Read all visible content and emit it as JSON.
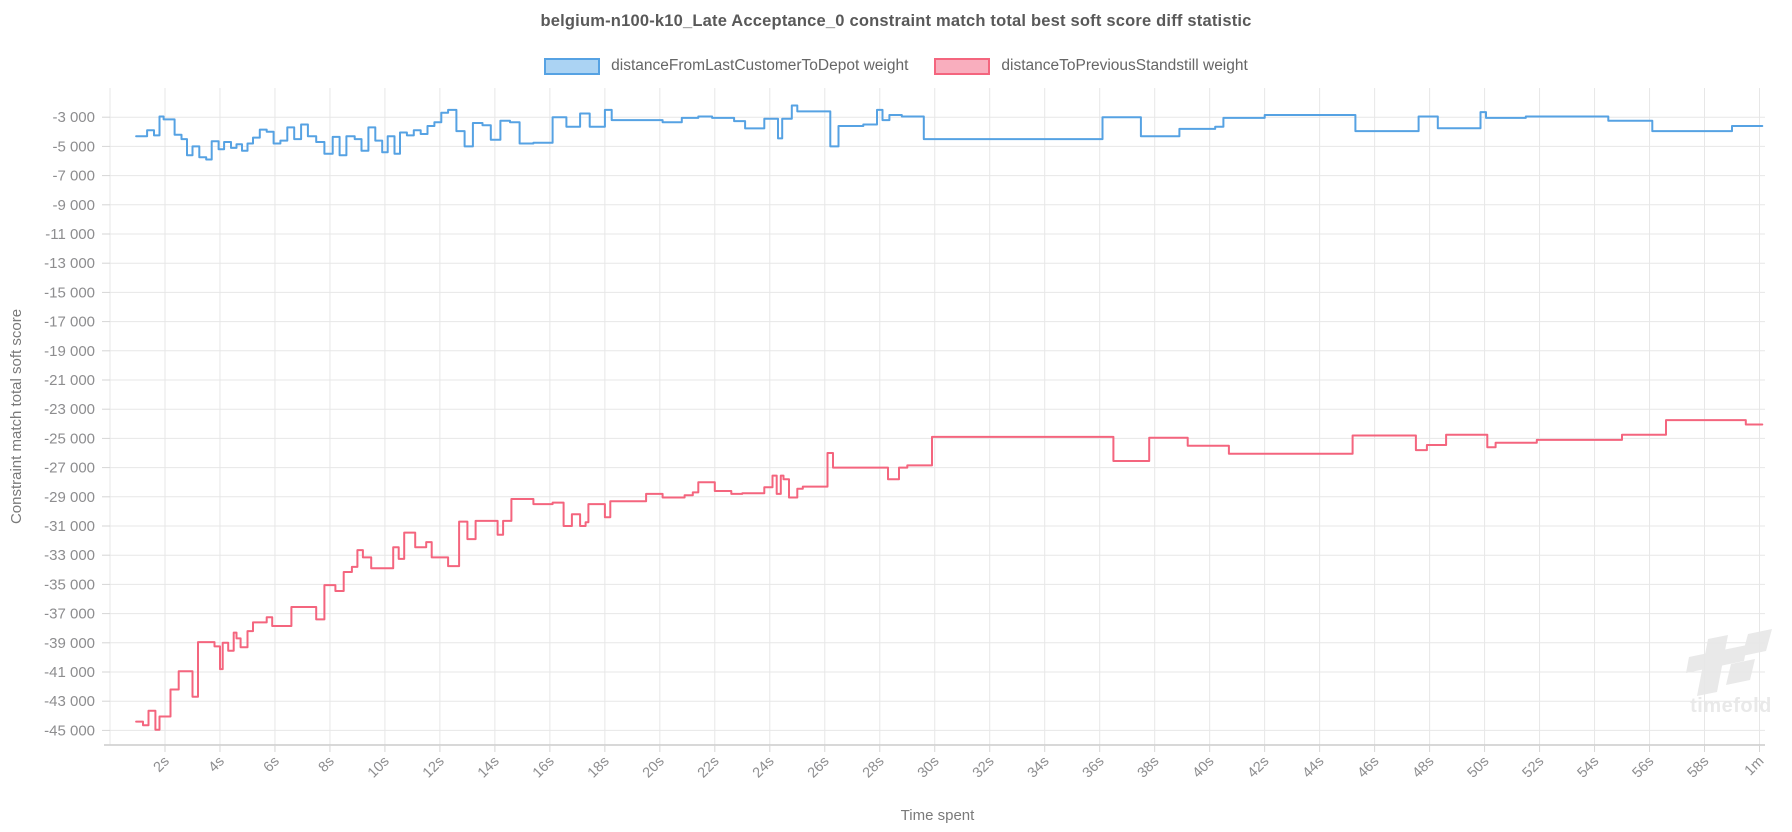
{
  "title": "belgium-n100-k10_Late Acceptance_0 constraint match total best soft score diff statistic",
  "legend": {
    "items": [
      {
        "label": "distanceFromLastCustomerToDepot weight",
        "fill": "#abd3f3",
        "border": "#56a2e3"
      },
      {
        "label": "distanceToPreviousStandstill weight",
        "fill": "#f9aebe",
        "border": "#f4657e"
      }
    ]
  },
  "axes": {
    "x_title": "Time spent",
    "y_title": "Constraint match total soft score"
  },
  "watermark": {
    "text": "timefold",
    "color": "#e9e9e9"
  },
  "colors": {
    "grid": "#e7e7e7",
    "axis_line": "#cccccc",
    "tick_stub": "#d6d6d6",
    "tick_text": "#8d8d8f",
    "title_text": "#595959",
    "legend_text": "#666666",
    "axis_title_text": "#7a7a7a",
    "series_blue": "#56a2e3",
    "series_pink": "#f4657e"
  },
  "chart_data": {
    "type": "line",
    "step": true,
    "grid": true,
    "legend_position": "top",
    "title": "belgium-n100-k10_Late Acceptance_0 constraint match total best soft score diff statistic",
    "xlabel": "Time spent",
    "ylabel": "Constraint match total soft score",
    "xlim": [
      0,
      60.2
    ],
    "ylim": [
      -46000,
      -1000
    ],
    "x_unit": "seconds",
    "x_ticks": [
      {
        "t": 2,
        "label": "2s"
      },
      {
        "t": 4,
        "label": "4s"
      },
      {
        "t": 6,
        "label": "6s"
      },
      {
        "t": 8,
        "label": "8s"
      },
      {
        "t": 10,
        "label": "10s"
      },
      {
        "t": 12,
        "label": "12s"
      },
      {
        "t": 14,
        "label": "14s"
      },
      {
        "t": 16,
        "label": "16s"
      },
      {
        "t": 18,
        "label": "18s"
      },
      {
        "t": 20,
        "label": "20s"
      },
      {
        "t": 22,
        "label": "22s"
      },
      {
        "t": 24,
        "label": "24s"
      },
      {
        "t": 26,
        "label": "26s"
      },
      {
        "t": 28,
        "label": "28s"
      },
      {
        "t": 30,
        "label": "30s"
      },
      {
        "t": 32,
        "label": "32s"
      },
      {
        "t": 34,
        "label": "34s"
      },
      {
        "t": 36,
        "label": "36s"
      },
      {
        "t": 38,
        "label": "38s"
      },
      {
        "t": 40,
        "label": "40s"
      },
      {
        "t": 42,
        "label": "42s"
      },
      {
        "t": 44,
        "label": "44s"
      },
      {
        "t": 46,
        "label": "46s"
      },
      {
        "t": 48,
        "label": "48s"
      },
      {
        "t": 50,
        "label": "50s"
      },
      {
        "t": 52,
        "label": "52s"
      },
      {
        "t": 54,
        "label": "54s"
      },
      {
        "t": 56,
        "label": "56s"
      },
      {
        "t": 58,
        "label": "58s"
      },
      {
        "t": 60,
        "label": "1m"
      }
    ],
    "y_ticks": [
      {
        "v": -3000,
        "label": "-3 000"
      },
      {
        "v": -5000,
        "label": "-5 000"
      },
      {
        "v": -7000,
        "label": "-7 000"
      },
      {
        "v": -9000,
        "label": "-9 000"
      },
      {
        "v": -11000,
        "label": "-11 000"
      },
      {
        "v": -13000,
        "label": "-13 000"
      },
      {
        "v": -15000,
        "label": "-15 000"
      },
      {
        "v": -17000,
        "label": "-17 000"
      },
      {
        "v": -19000,
        "label": "-19 000"
      },
      {
        "v": -21000,
        "label": "-21 000"
      },
      {
        "v": -23000,
        "label": "-23 000"
      },
      {
        "v": -25000,
        "label": "-25 000"
      },
      {
        "v": -27000,
        "label": "-27 000"
      },
      {
        "v": -29000,
        "label": "-29 000"
      },
      {
        "v": -31000,
        "label": "-31 000"
      },
      {
        "v": -33000,
        "label": "-33 000"
      },
      {
        "v": -35000,
        "label": "-35 000"
      },
      {
        "v": -37000,
        "label": "-37 000"
      },
      {
        "v": -39000,
        "label": "-39 000"
      },
      {
        "v": -41000,
        "label": "-41 000"
      },
      {
        "v": -43000,
        "label": "-43 000"
      },
      {
        "v": -45000,
        "label": "-45 000"
      }
    ],
    "series": [
      {
        "name": "distanceFromLastCustomerToDepot weight",
        "color": "#56a2e3",
        "points": [
          [
            0.95,
            -4300
          ],
          [
            1.35,
            -3900
          ],
          [
            1.6,
            -4250
          ],
          [
            1.8,
            -2950
          ],
          [
            1.95,
            -3150
          ],
          [
            2.35,
            -4200
          ],
          [
            2.6,
            -4500
          ],
          [
            2.8,
            -5600
          ],
          [
            3.0,
            -5000
          ],
          [
            3.25,
            -5750
          ],
          [
            3.5,
            -5900
          ],
          [
            3.7,
            -4650
          ],
          [
            3.95,
            -5200
          ],
          [
            4.15,
            -4700
          ],
          [
            4.4,
            -5100
          ],
          [
            4.6,
            -4850
          ],
          [
            4.8,
            -5300
          ],
          [
            5.0,
            -4800
          ],
          [
            5.2,
            -4400
          ],
          [
            5.45,
            -3850
          ],
          [
            5.7,
            -4000
          ],
          [
            5.95,
            -4800
          ],
          [
            6.2,
            -4600
          ],
          [
            6.45,
            -3700
          ],
          [
            6.7,
            -4500
          ],
          [
            6.95,
            -3500
          ],
          [
            7.2,
            -4300
          ],
          [
            7.5,
            -4700
          ],
          [
            7.8,
            -5500
          ],
          [
            8.1,
            -4350
          ],
          [
            8.35,
            -5600
          ],
          [
            8.6,
            -4300
          ],
          [
            8.9,
            -4500
          ],
          [
            9.15,
            -5300
          ],
          [
            9.4,
            -3700
          ],
          [
            9.65,
            -4600
          ],
          [
            9.9,
            -5400
          ],
          [
            10.1,
            -4300
          ],
          [
            10.35,
            -5500
          ],
          [
            10.55,
            -4050
          ],
          [
            10.8,
            -4250
          ],
          [
            11.05,
            -3900
          ],
          [
            11.3,
            -4150
          ],
          [
            11.55,
            -3600
          ],
          [
            11.8,
            -3350
          ],
          [
            12.05,
            -2700
          ],
          [
            12.3,
            -2500
          ],
          [
            12.6,
            -3950
          ],
          [
            12.9,
            -5000
          ],
          [
            13.2,
            -3400
          ],
          [
            13.55,
            -3550
          ],
          [
            13.85,
            -4550
          ],
          [
            14.2,
            -3250
          ],
          [
            14.55,
            -3350
          ],
          [
            14.9,
            -4800
          ],
          [
            15.4,
            -4750
          ],
          [
            16.1,
            -3000
          ],
          [
            16.6,
            -3650
          ],
          [
            17.1,
            -2750
          ],
          [
            17.45,
            -3650
          ],
          [
            18.0,
            -2500
          ],
          [
            18.25,
            -3200
          ],
          [
            20.1,
            -3350
          ],
          [
            20.8,
            -3050
          ],
          [
            21.4,
            -2950
          ],
          [
            21.9,
            -3050
          ],
          [
            22.7,
            -3270
          ],
          [
            23.1,
            -3770
          ],
          [
            23.8,
            -3100
          ],
          [
            24.3,
            -4450
          ],
          [
            24.45,
            -3100
          ],
          [
            24.8,
            -2200
          ],
          [
            25.0,
            -2600
          ],
          [
            26.2,
            -5000
          ],
          [
            26.5,
            -3600
          ],
          [
            27.4,
            -3500
          ],
          [
            27.9,
            -2500
          ],
          [
            28.1,
            -3200
          ],
          [
            28.35,
            -2850
          ],
          [
            28.8,
            -2950
          ],
          [
            29.6,
            -4500
          ],
          [
            36.1,
            -3000
          ],
          [
            37.5,
            -4300
          ],
          [
            38.9,
            -3800
          ],
          [
            40.2,
            -3650
          ],
          [
            40.5,
            -3050
          ],
          [
            42.0,
            -2850
          ],
          [
            45.3,
            -3950
          ],
          [
            47.6,
            -2950
          ],
          [
            48.3,
            -3750
          ],
          [
            49.85,
            -2650
          ],
          [
            50.05,
            -3050
          ],
          [
            51.5,
            -2950
          ],
          [
            54.5,
            -3250
          ],
          [
            56.1,
            -3950
          ],
          [
            59.0,
            -3600
          ],
          [
            60.1,
            -3600
          ]
        ]
      },
      {
        "name": "distanceToPreviousStandstill weight",
        "color": "#f4657e",
        "points": [
          [
            0.95,
            -44400
          ],
          [
            1.2,
            -44650
          ],
          [
            1.4,
            -43650
          ],
          [
            1.65,
            -44950
          ],
          [
            1.8,
            -44050
          ],
          [
            2.2,
            -42200
          ],
          [
            2.5,
            -40950
          ],
          [
            3.0,
            -42700
          ],
          [
            3.2,
            -38950
          ],
          [
            3.8,
            -39250
          ],
          [
            4.0,
            -40800
          ],
          [
            4.1,
            -39000
          ],
          [
            4.3,
            -39550
          ],
          [
            4.5,
            -38300
          ],
          [
            4.6,
            -38700
          ],
          [
            4.75,
            -39300
          ],
          [
            5.0,
            -38200
          ],
          [
            5.2,
            -37600
          ],
          [
            5.7,
            -37250
          ],
          [
            5.9,
            -37850
          ],
          [
            6.6,
            -36550
          ],
          [
            7.5,
            -37400
          ],
          [
            7.8,
            -35050
          ],
          [
            8.2,
            -35450
          ],
          [
            8.5,
            -34150
          ],
          [
            8.8,
            -33800
          ],
          [
            9.0,
            -32650
          ],
          [
            9.2,
            -33150
          ],
          [
            9.5,
            -33900
          ],
          [
            10.3,
            -32450
          ],
          [
            10.5,
            -33250
          ],
          [
            10.7,
            -31450
          ],
          [
            11.1,
            -32450
          ],
          [
            11.5,
            -32100
          ],
          [
            11.7,
            -33150
          ],
          [
            12.3,
            -33750
          ],
          [
            12.7,
            -30700
          ],
          [
            13.0,
            -31900
          ],
          [
            13.3,
            -30650
          ],
          [
            14.1,
            -31600
          ],
          [
            14.3,
            -30650
          ],
          [
            14.6,
            -29150
          ],
          [
            15.4,
            -29500
          ],
          [
            16.1,
            -29400
          ],
          [
            16.5,
            -31000
          ],
          [
            16.8,
            -30200
          ],
          [
            17.1,
            -31000
          ],
          [
            17.3,
            -30750
          ],
          [
            17.4,
            -29500
          ],
          [
            18.0,
            -30400
          ],
          [
            18.2,
            -29300
          ],
          [
            19.5,
            -28800
          ],
          [
            20.1,
            -29050
          ],
          [
            20.9,
            -28900
          ],
          [
            21.2,
            -28700
          ],
          [
            21.4,
            -28000
          ],
          [
            22.0,
            -28600
          ],
          [
            22.6,
            -28800
          ],
          [
            23.0,
            -28750
          ],
          [
            23.8,
            -28350
          ],
          [
            24.1,
            -27550
          ],
          [
            24.25,
            -28800
          ],
          [
            24.4,
            -27550
          ],
          [
            24.5,
            -27800
          ],
          [
            24.7,
            -29050
          ],
          [
            25.0,
            -28450
          ],
          [
            25.2,
            -28300
          ],
          [
            26.1,
            -26000
          ],
          [
            26.3,
            -27000
          ],
          [
            28.3,
            -27800
          ],
          [
            28.7,
            -27000
          ],
          [
            29.0,
            -26850
          ],
          [
            29.9,
            -24900
          ],
          [
            36.5,
            -26550
          ],
          [
            37.8,
            -24950
          ],
          [
            39.2,
            -25500
          ],
          [
            40.7,
            -26050
          ],
          [
            45.2,
            -24800
          ],
          [
            47.5,
            -25800
          ],
          [
            47.9,
            -25450
          ],
          [
            48.6,
            -24750
          ],
          [
            50.1,
            -25600
          ],
          [
            50.4,
            -25300
          ],
          [
            51.9,
            -25100
          ],
          [
            55.0,
            -24750
          ],
          [
            56.6,
            -23750
          ],
          [
            59.5,
            -24050
          ],
          [
            60.1,
            -24050
          ]
        ]
      }
    ]
  }
}
